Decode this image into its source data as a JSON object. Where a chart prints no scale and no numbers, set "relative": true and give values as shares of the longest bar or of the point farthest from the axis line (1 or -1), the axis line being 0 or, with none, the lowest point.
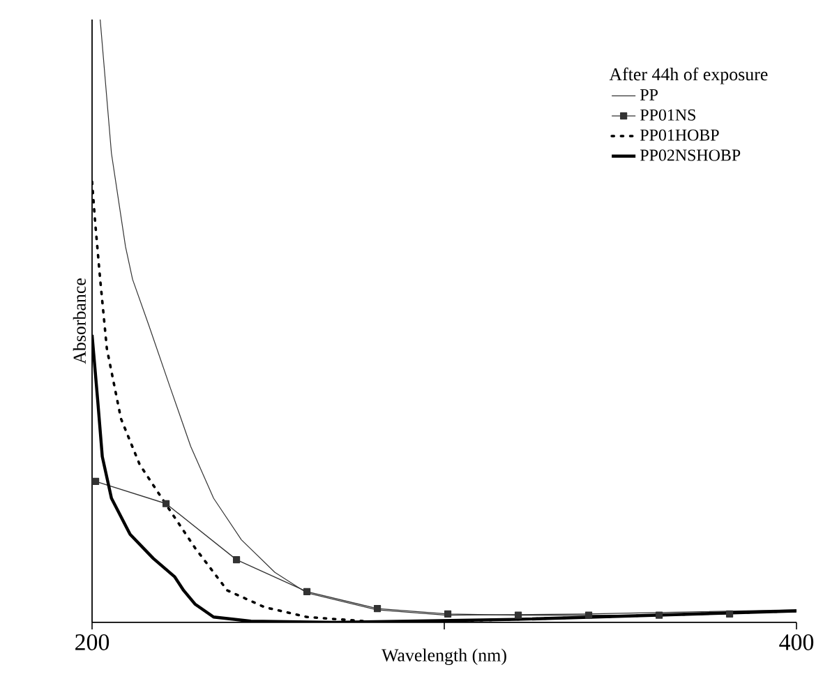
{
  "chart_data": {
    "type": "line",
    "xlabel": "Wavelength (nm)",
    "ylabel": "Absorbance",
    "legend_title": "After 44h of exposure",
    "relative": true,
    "legend": "top right",
    "grid": false,
    "xlim": [
      200,
      400
    ],
    "xticks": [
      200,
      {
        "value": 300,
        "label": null
      },
      400
    ],
    "series": [
      {
        "name": "PP",
        "color": "#333333",
        "line_style": "solid",
        "marker": "none",
        "x": [
          202.3,
          205.5,
          209.5,
          211.5,
          216.1,
          222.1,
          228.0,
          234.5,
          242.4,
          251.9,
          261.0,
          280.8,
          300.6,
          340.2,
          400
        ],
        "values": [
          1.0,
          0.778,
          0.623,
          0.569,
          0.493,
          0.391,
          0.292,
          0.206,
          0.137,
          0.083,
          0.049,
          0.021,
          0.012,
          0.014,
          0.021
        ]
      },
      {
        "name": "PP01NS",
        "color": "#333333",
        "line_style": "solid",
        "marker": "square",
        "x": [
          201,
          221,
          241,
          261,
          281,
          301,
          321,
          341,
          361,
          381
        ],
        "values": [
          0.234,
          0.197,
          0.104,
          0.051,
          0.023,
          0.014,
          0.012,
          0.012,
          0.012,
          0.014
        ]
      },
      {
        "name": "PP01HOBP",
        "color": "#000000",
        "line_style": "dotted",
        "marker": "none",
        "x": [
          200,
          200.9,
          202.3,
          204.2,
          208.2,
          213.5,
          221.4,
          229.3,
          238.4,
          249.1,
          261.0,
          282,
          320,
          360,
          400
        ],
        "values": [
          0.731,
          0.662,
          0.569,
          0.454,
          0.338,
          0.262,
          0.192,
          0.123,
          0.053,
          0.025,
          0.009,
          0.0,
          0.005,
          0.012,
          0.019
        ]
      },
      {
        "name": "PP02NSHOBP",
        "color": "#000000",
        "line_style": "solid",
        "marker": "none",
        "x": [
          200,
          201.6,
          202.9,
          205.5,
          210.8,
          217.4,
          223.4,
          226.0,
          229.3,
          234.5,
          245.1,
          268.9,
          320,
          360,
          400
        ],
        "values": [
          0.477,
          0.368,
          0.275,
          0.206,
          0.146,
          0.106,
          0.076,
          0.053,
          0.03,
          0.009,
          0.002,
          0.0,
          0.005,
          0.012,
          0.019
        ]
      }
    ]
  }
}
